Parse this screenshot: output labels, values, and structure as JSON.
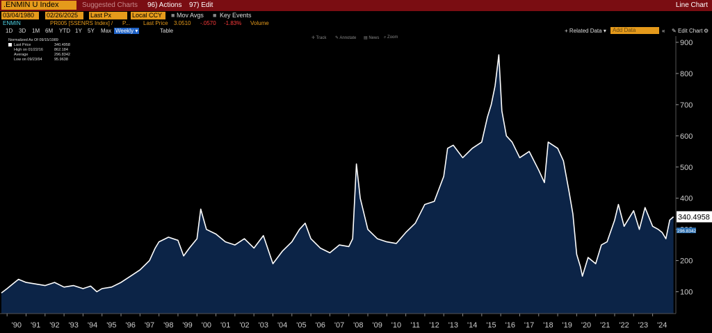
{
  "header": {
    "security": ".ENMIN U Index",
    "suggested": "Suggested Charts",
    "actions": "96) Actions",
    "edit": "97) Edit",
    "chart_type": "Line Chart"
  },
  "controls": {
    "start_date": "03/04/1980",
    "end_date": "02/26/2025",
    "field": "Last Px",
    "currency": "Local CCY",
    "mov_avgs": "Mov Avgs",
    "key_events": "Key Events"
  },
  "legend": {
    "ticker": "ENMIN",
    "series": "PR005 [SSENRS Index] /",
    "p": "P...",
    "last_price_label": "Last Price",
    "last_price": "3.0510",
    "change": "-.0570",
    "change_pct": "-1.83%",
    "volume": "Volume"
  },
  "timeframes": [
    "1D",
    "3D",
    "1M",
    "6M",
    "YTD",
    "1Y",
    "5Y",
    "Max"
  ],
  "frequency": "Weekly",
  "table_label": "Table",
  "right_tools": {
    "related": "Related Data",
    "add_data": "Add Data",
    "edit_chart": "Edit Chart"
  },
  "chart_tools": [
    "Track",
    "Annotate",
    "News",
    "Zoom"
  ],
  "stats_box": {
    "normalized": "Normalized As Of 09/15/1989",
    "last_label": "Last Price",
    "last_val": "340.4958",
    "high_label": "High on 01/22/16",
    "high_val": "862.184",
    "avg_label": "Average",
    "avg_val": "296.8342",
    "low_label": "Low on 09/23/94",
    "low_val": "95.9638"
  },
  "colors": {
    "fill": "#0c2447",
    "line": "#ffffff",
    "bar": "#7a0d12",
    "accent": "#e59a1b"
  },
  "chart_data": {
    "type": "area",
    "title": "",
    "xlabel": "",
    "ylabel": "",
    "ylim": [
      30,
      920
    ],
    "y_ticks": [
      100,
      200,
      300,
      400,
      500,
      600,
      700,
      800,
      900
    ],
    "x_tick_labels": [
      "'90",
      "'91",
      "'92",
      "'93",
      "'94",
      "'95",
      "'96",
      "'97",
      "'98",
      "'99",
      "'00",
      "'01",
      "'02",
      "'03",
      "'04",
      "'05",
      "'06",
      "'07",
      "'08",
      "'09",
      "'10",
      "'11",
      "'12",
      "'13",
      "'14",
      "'15",
      "'16",
      "'17",
      "'18",
      "'19",
      "'20",
      "'21",
      "'22",
      "'23",
      "'24"
    ],
    "last_value_label": "340.4958",
    "average_label": "296.8342",
    "x": [
      1989.7,
      1990.0,
      1990.3,
      1990.6,
      1991.0,
      1991.5,
      1992.0,
      1992.5,
      1993.0,
      1993.5,
      1994.0,
      1994.4,
      1994.73,
      1995.0,
      1995.5,
      1996.0,
      1996.5,
      1997.0,
      1997.5,
      1997.8,
      1998.0,
      1998.5,
      1999.0,
      1999.3,
      1999.6,
      2000.0,
      2000.2,
      2000.5,
      2001.0,
      2001.5,
      2002.0,
      2002.5,
      2003.0,
      2003.5,
      2004.0,
      2004.5,
      2005.0,
      2005.4,
      2005.7,
      2006.0,
      2006.5,
      2007.0,
      2007.5,
      2008.0,
      2008.2,
      2008.4,
      2008.6,
      2009.0,
      2009.5,
      2010.0,
      2010.5,
      2011.0,
      2011.5,
      2012.0,
      2012.5,
      2013.0,
      2013.2,
      2013.5,
      2014.0,
      2014.5,
      2015.0,
      2015.3,
      2015.5,
      2015.7,
      2015.9,
      2016.06,
      2016.3,
      2016.6,
      2017.0,
      2017.5,
      2018.0,
      2018.3,
      2018.5,
      2019.0,
      2019.3,
      2019.6,
      2019.8,
      2020.0,
      2020.2,
      2020.3,
      2020.6,
      2021.0,
      2021.3,
      2021.6,
      2022.0,
      2022.2,
      2022.5,
      2023.0,
      2023.3,
      2023.6,
      2024.0,
      2024.3,
      2024.5,
      2024.7,
      2024.9,
      2025.1
    ],
    "y": [
      96,
      110,
      125,
      140,
      130,
      125,
      120,
      130,
      115,
      120,
      110,
      118,
      100,
      110,
      115,
      130,
      150,
      170,
      200,
      240,
      260,
      275,
      265,
      215,
      240,
      270,
      365,
      300,
      285,
      260,
      250,
      270,
      240,
      280,
      190,
      230,
      260,
      300,
      320,
      270,
      240,
      225,
      250,
      245,
      270,
      510,
      400,
      300,
      270,
      260,
      255,
      290,
      320,
      380,
      390,
      470,
      560,
      570,
      530,
      560,
      580,
      660,
      700,
      760,
      860,
      680,
      600,
      580,
      530,
      550,
      490,
      450,
      580,
      560,
      520,
      420,
      350,
      220,
      180,
      150,
      210,
      190,
      250,
      260,
      330,
      380,
      310,
      360,
      300,
      370,
      310,
      300,
      290,
      270,
      330,
      340.4958
    ]
  }
}
